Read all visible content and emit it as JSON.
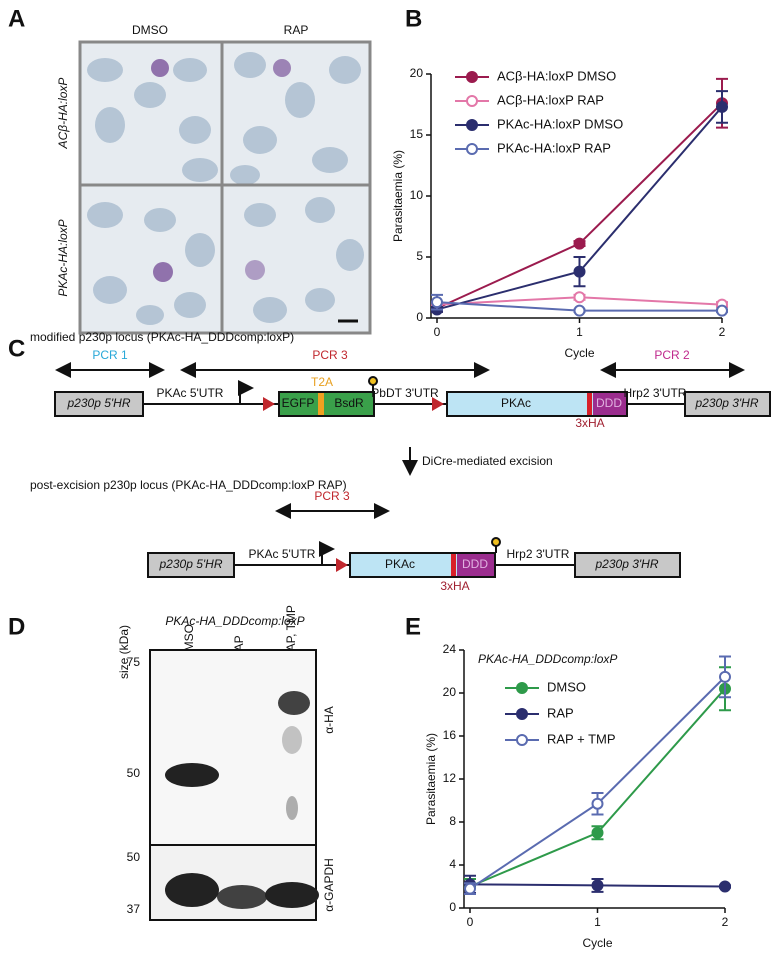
{
  "panel_letters": [
    "A",
    "B",
    "C",
    "D",
    "E"
  ],
  "micrographs": {
    "columns": [
      "DMSO",
      "RAP"
    ],
    "rows": [
      "ACβ-HA:loxP",
      "PKAc-HA:loxP"
    ]
  },
  "diagram": {
    "modified_title": "modified p230p locus (PKAc-HA_DDDcomp:loxP)",
    "excised_title": "post-excision p230p locus (PKAc-HA_DDDcomp:loxP RAP)",
    "excision_label": "DiCre-mediated excision",
    "modified_labels": [
      "PCR 1",
      "PCR 3",
      "PCR 2",
      "p230p 5'HR",
      "PKAc 5'UTR",
      "T2A",
      "EGFP",
      "BsdR",
      "PbDT 3'UTR",
      "PKAc",
      "DDD",
      "3xHA",
      "Hrp2 3'UTR",
      "p230p 3'HR"
    ],
    "excised_labels": [
      "PCR 3",
      "p230p 5'HR",
      "PKAc 5'UTR",
      "PKAc",
      "DDD",
      "3xHA",
      "Hrp2 3'UTR",
      "p230p 3'HR"
    ]
  },
  "blot": {
    "title": "PKAc-HA_DDDcomp:loxP",
    "size_label": "size (kDa)",
    "lanes": [
      "DMSO",
      "RAP",
      "RAP, TMP"
    ],
    "top_markers": [
      75,
      50
    ],
    "bottom_markers": [
      50,
      37
    ],
    "top_antibody": "α-HA",
    "bottom_antibody": "α-GAPDH"
  },
  "chart_data": [
    {
      "type": "line",
      "x": [
        0,
        1,
        2
      ],
      "xlim": [
        0,
        2
      ],
      "xticks": [
        0,
        1,
        2
      ],
      "ylim": [
        0,
        20
      ],
      "yticks": [
        0,
        5,
        10,
        15,
        20
      ],
      "xlabel": "Cycle",
      "ylabel": "Parasitaemia (%)",
      "legend": "upper left",
      "series": [
        {
          "name": "ACβ-HA:loxP DMSO",
          "color": "#9b1b4e",
          "marker": "filled",
          "values": [
            0.8,
            6.1,
            17.6
          ],
          "errors": [
            0.3,
            0.2,
            2.0
          ]
        },
        {
          "name": "ACβ-HA:loxP RAP",
          "color": "#e377a8",
          "marker": "open",
          "values": [
            1.1,
            1.7,
            1.1
          ],
          "errors": [
            0.2,
            0.2,
            0.2
          ]
        },
        {
          "name": "PKAc-HA:loxP DMSO",
          "color": "#2b2e6e",
          "marker": "filled",
          "values": [
            0.7,
            3.8,
            17.3
          ],
          "errors": [
            0.2,
            1.2,
            1.3
          ]
        },
        {
          "name": "PKAc-HA:loxP RAP",
          "color": "#5a6bb0",
          "marker": "open",
          "values": [
            1.3,
            0.6,
            0.6
          ],
          "errors": [
            0.6,
            0.1,
            0.1
          ]
        }
      ]
    },
    {
      "type": "line",
      "subtitle": "PKAc-HA_DDDcomp:loxP",
      "x": [
        0,
        1,
        2
      ],
      "xlim": [
        0,
        2
      ],
      "xticks": [
        0,
        1,
        2
      ],
      "ylim": [
        0,
        24
      ],
      "yticks": [
        0,
        4,
        8,
        12,
        16,
        20,
        24
      ],
      "xlabel": "Cycle",
      "ylabel": "Parasitaemia (%)",
      "legend": "upper left",
      "series": [
        {
          "name": "DMSO",
          "color": "#2e9a4a",
          "marker": "filled",
          "values": [
            2.0,
            7.0,
            20.4
          ],
          "errors": [
            0.7,
            0.6,
            2.0
          ]
        },
        {
          "name": "RAP",
          "color": "#2b2e6e",
          "marker": "filled",
          "values": [
            2.2,
            2.1,
            2.0
          ],
          "errors": [
            0.8,
            0.6,
            0.1
          ]
        },
        {
          "name": "RAP + TMP",
          "color": "#5a6bb0",
          "marker": "open",
          "values": [
            1.8,
            9.7,
            21.5
          ],
          "errors": [
            0.5,
            1.0,
            1.9
          ]
        }
      ]
    }
  ]
}
